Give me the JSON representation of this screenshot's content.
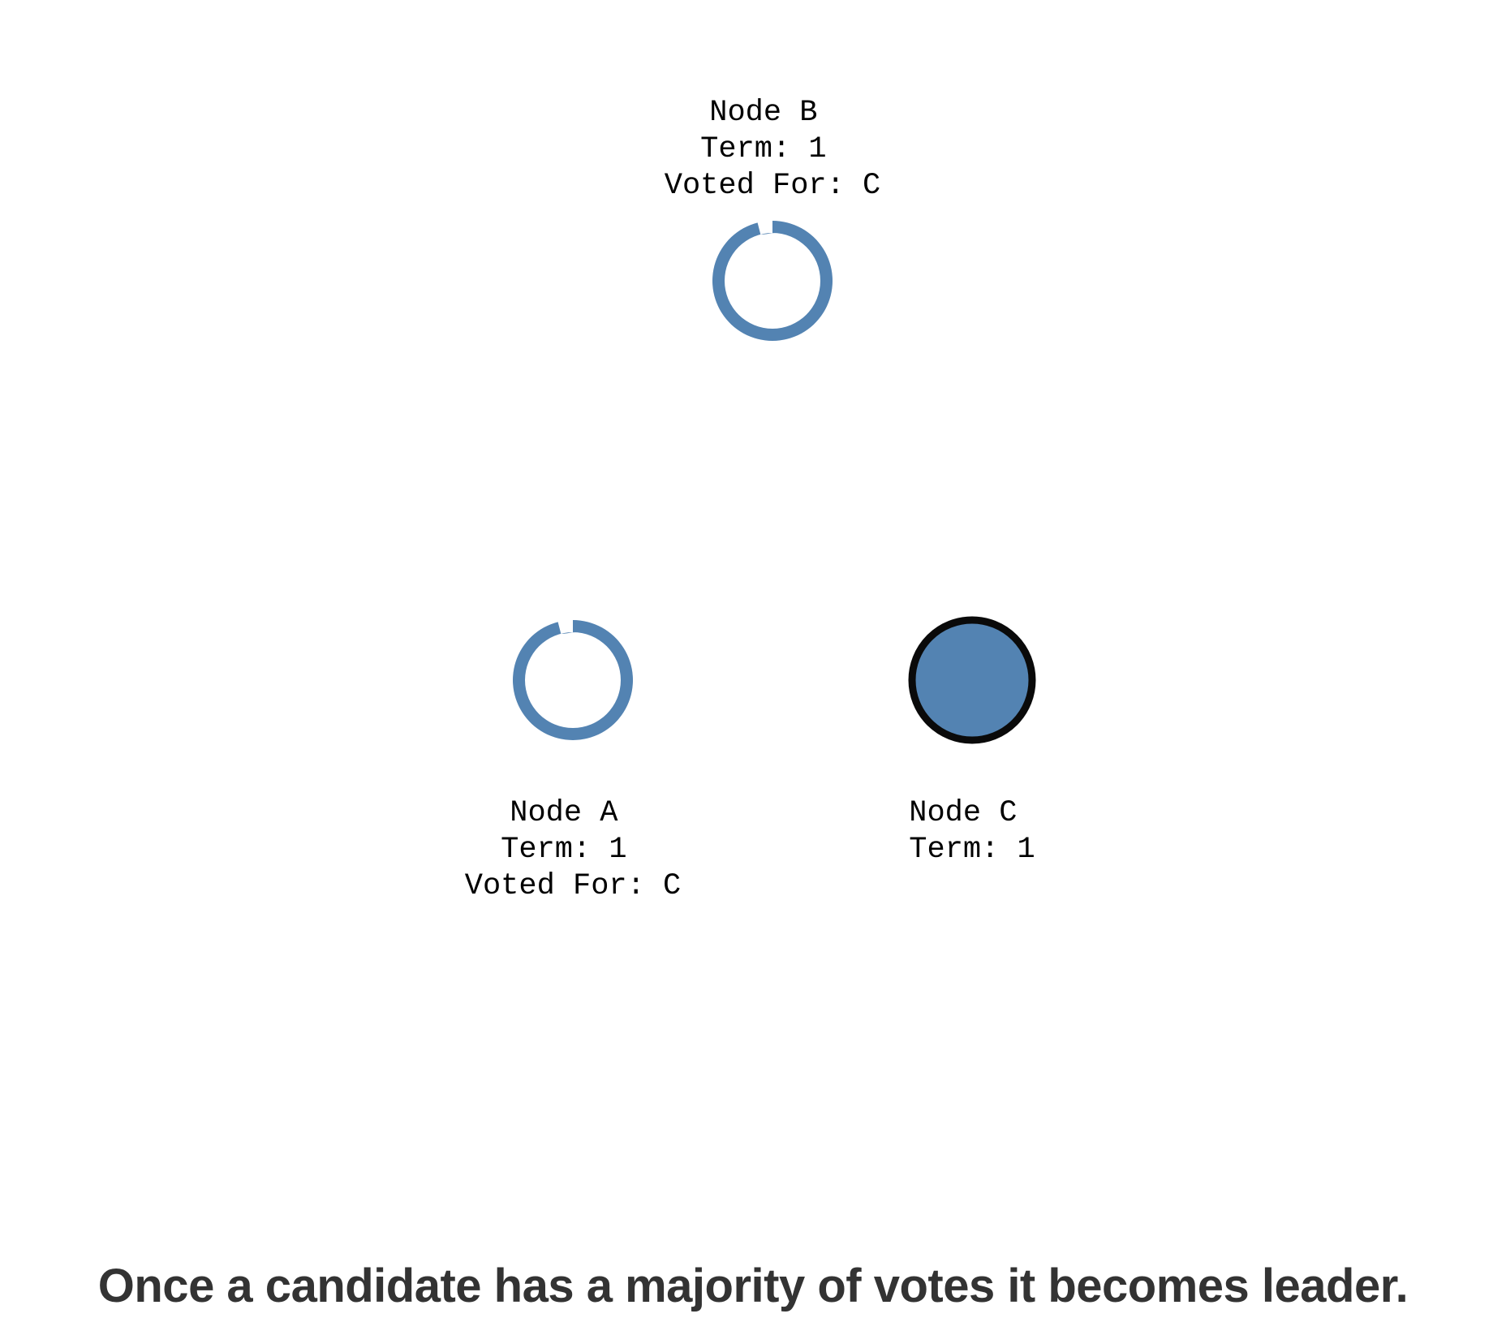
{
  "colors": {
    "node_fill": "#5383b2",
    "leader_ring": "#0a0a0a",
    "caption_text": "#333333",
    "background": "#ffffff"
  },
  "nodes": {
    "b": {
      "name": "Node B",
      "term": "Term: 1",
      "voted_for": "Voted For: C",
      "state": "follower",
      "election_timeout_remaining": 0.96
    },
    "a": {
      "name": "Node A",
      "term": "Term: 1",
      "voted_for": "Voted For: C",
      "state": "follower",
      "election_timeout_remaining": 0.96
    },
    "c": {
      "name": "Node C",
      "term": "Term: 1",
      "state": "leader"
    }
  },
  "caption": "Once a candidate has a majority of votes it becomes leader."
}
